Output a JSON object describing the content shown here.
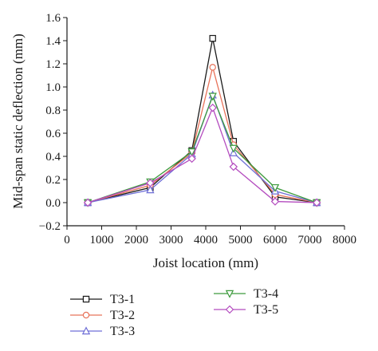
{
  "chart_data": {
    "type": "line",
    "xlabel": "Joist location (mm)",
    "ylabel": "Mid-span static deflection (mm)",
    "xlim": [
      0,
      8000
    ],
    "ylim": [
      -0.2,
      1.6
    ],
    "x_ticks": [
      "0",
      "1000",
      "2000",
      "3000",
      "4000",
      "5000",
      "6000",
      "7000",
      "8000"
    ],
    "y_ticks": [
      "−0.2",
      "0.0",
      "0.2",
      "0.4",
      "0.6",
      "0.8",
      "1.0",
      "1.2",
      "1.4",
      "1.6"
    ],
    "grid": false,
    "legend_position": "bottom",
    "x": [
      600,
      2400,
      3600,
      4200,
      4800,
      6000,
      7200
    ],
    "series": [
      {
        "name": "T3-1",
        "color": "#1a1a1a",
        "marker": "square",
        "values": [
          0.0,
          0.13,
          0.45,
          1.42,
          0.53,
          0.05,
          0.0
        ]
      },
      {
        "name": "T3-2",
        "color": "#e8735a",
        "marker": "circle",
        "values": [
          0.0,
          0.15,
          0.43,
          1.17,
          0.5,
          0.07,
          0.0
        ]
      },
      {
        "name": "T3-3",
        "color": "#6f6fd6",
        "marker": "triangle-up",
        "values": [
          0.0,
          0.11,
          0.42,
          0.93,
          0.43,
          0.1,
          0.0
        ]
      },
      {
        "name": "T3-4",
        "color": "#3d9a3d",
        "marker": "triangle-down",
        "values": [
          0.0,
          0.18,
          0.44,
          0.92,
          0.47,
          0.13,
          0.0
        ]
      },
      {
        "name": "T3-5",
        "color": "#b44cbf",
        "marker": "diamond",
        "values": [
          0.0,
          0.17,
          0.38,
          0.82,
          0.31,
          0.01,
          0.0
        ]
      }
    ]
  }
}
